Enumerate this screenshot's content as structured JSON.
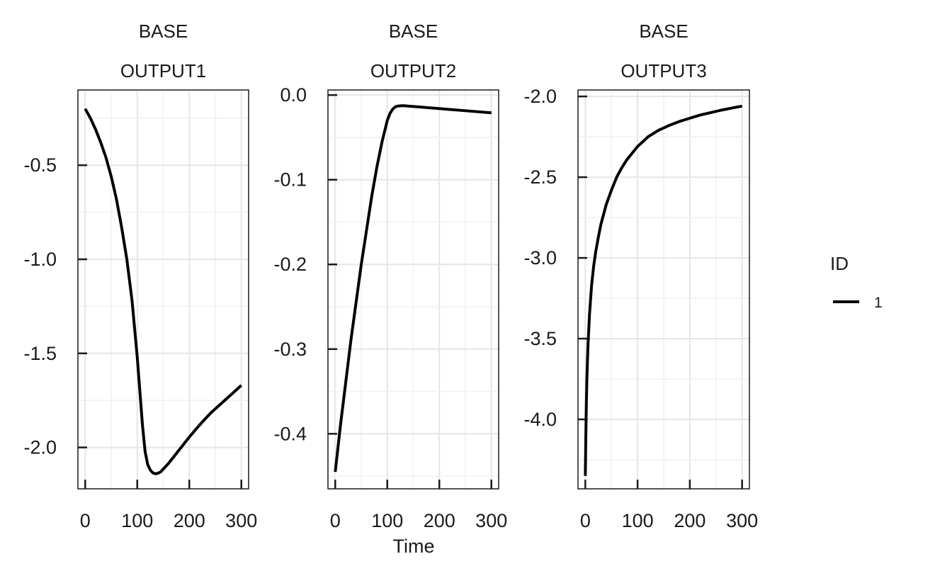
{
  "chart_data": {
    "type": "line",
    "xlabel": "Time",
    "legend": {
      "title": "ID",
      "placement": "right",
      "entries": [
        "1"
      ],
      "color": "#000000"
    },
    "grid": true,
    "x_ticks": [
      0,
      100,
      200,
      300
    ],
    "xlim": [
      -14,
      314
    ],
    "panels": [
      {
        "strip_top": "BASE",
        "strip_bottom": "OUTPUT1",
        "ylim": [
          -2.22,
          -0.1
        ],
        "y_ticks": [
          -0.5,
          -1.0,
          -1.5,
          -2.0
        ],
        "y_tick_labels": [
          "-0.5",
          "-1.0",
          "-1.5",
          "-2.0"
        ],
        "series": [
          {
            "name": "1",
            "x": [
              0,
              10,
              20,
              30,
              40,
              50,
              60,
              70,
              80,
              90,
              100,
              105,
              110,
              115,
              120,
              125,
              130,
              135,
              140,
              145,
              150,
              160,
              170,
              180,
              190,
              200,
              220,
              240,
              260,
              280,
              300
            ],
            "y": [
              -0.2,
              -0.25,
              -0.31,
              -0.38,
              -0.46,
              -0.56,
              -0.68,
              -0.83,
              -1.0,
              -1.22,
              -1.52,
              -1.7,
              -1.88,
              -2.02,
              -2.09,
              -2.12,
              -2.135,
              -2.14,
              -2.137,
              -2.13,
              -2.115,
              -2.085,
              -2.05,
              -2.015,
              -1.98,
              -1.945,
              -1.88,
              -1.82,
              -1.77,
              -1.72,
              -1.67
            ]
          }
        ]
      },
      {
        "strip_top": "BASE",
        "strip_bottom": "OUTPUT2",
        "ylim": [
          -0.465,
          0.006
        ],
        "y_ticks": [
          0.0,
          -0.1,
          -0.2,
          -0.3,
          -0.4
        ],
        "y_tick_labels": [
          "0.0",
          "-0.1",
          "-0.2",
          "-0.3",
          "-0.4"
        ],
        "series": [
          {
            "name": "1",
            "x": [
              0,
              10,
              20,
              30,
              40,
              50,
              60,
              70,
              80,
              90,
              100,
              105,
              110,
              115,
              120,
              130,
              140,
              160,
              180,
              200,
              240,
              300
            ],
            "y": [
              -0.445,
              -0.39,
              -0.34,
              -0.29,
              -0.245,
              -0.2,
              -0.16,
              -0.12,
              -0.085,
              -0.055,
              -0.03,
              -0.022,
              -0.017,
              -0.014,
              -0.013,
              -0.0125,
              -0.013,
              -0.014,
              -0.015,
              -0.016,
              -0.018,
              -0.021
            ]
          }
        ]
      },
      {
        "strip_top": "BASE",
        "strip_bottom": "OUTPUT3",
        "ylim": [
          -4.43,
          -1.96
        ],
        "y_ticks": [
          -2.0,
          -2.5,
          -3.0,
          -3.5,
          -4.0
        ],
        "y_tick_labels": [
          "-2.0",
          "-2.5",
          "-3.0",
          "-3.5",
          "-4.0"
        ],
        "series": [
          {
            "name": "1",
            "x": [
              0,
              1,
              2,
              3,
              5,
              8,
              12,
              16,
              20,
              25,
              30,
              40,
              50,
              60,
              70,
              80,
              90,
              100,
              120,
              140,
              160,
              180,
              200,
              220,
              240,
              260,
              280,
              300
            ],
            "y": [
              -4.35,
              -4.1,
              -3.9,
              -3.75,
              -3.55,
              -3.35,
              -3.17,
              -3.05,
              -2.96,
              -2.87,
              -2.79,
              -2.67,
              -2.58,
              -2.5,
              -2.44,
              -2.39,
              -2.35,
              -2.31,
              -2.25,
              -2.21,
              -2.18,
              -2.155,
              -2.135,
              -2.115,
              -2.1,
              -2.085,
              -2.072,
              -2.06
            ]
          }
        ]
      }
    ]
  }
}
